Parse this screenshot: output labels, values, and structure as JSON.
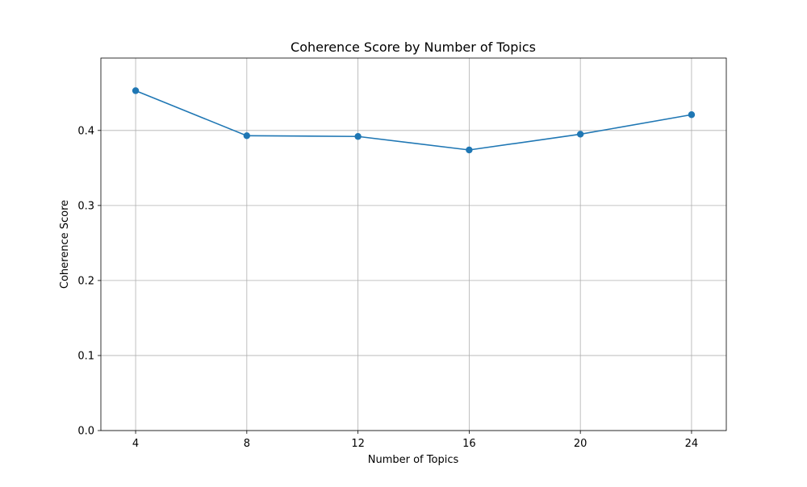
{
  "chart_data": {
    "type": "line",
    "title": "Coherence Score by Number of Topics",
    "xlabel": "Number of Topics",
    "ylabel": "Coherence Score",
    "x": [
      4,
      8,
      12,
      16,
      20,
      24
    ],
    "xticks": [
      "4",
      "8",
      "12",
      "16",
      "20",
      "24"
    ],
    "yticks": [
      "0.0",
      "0.1",
      "0.2",
      "0.3",
      "0.4"
    ],
    "ytick_values": [
      0.0,
      0.1,
      0.2,
      0.3,
      0.4
    ],
    "xlim": [
      2.75,
      25.25
    ],
    "ylim": [
      0.0,
      0.4965
    ],
    "grid": true,
    "series": [
      {
        "values": [
          0.453,
          0.393,
          0.392,
          0.374,
          0.395,
          0.421
        ],
        "color": "#1f77b4",
        "marker": "circle"
      }
    ]
  }
}
